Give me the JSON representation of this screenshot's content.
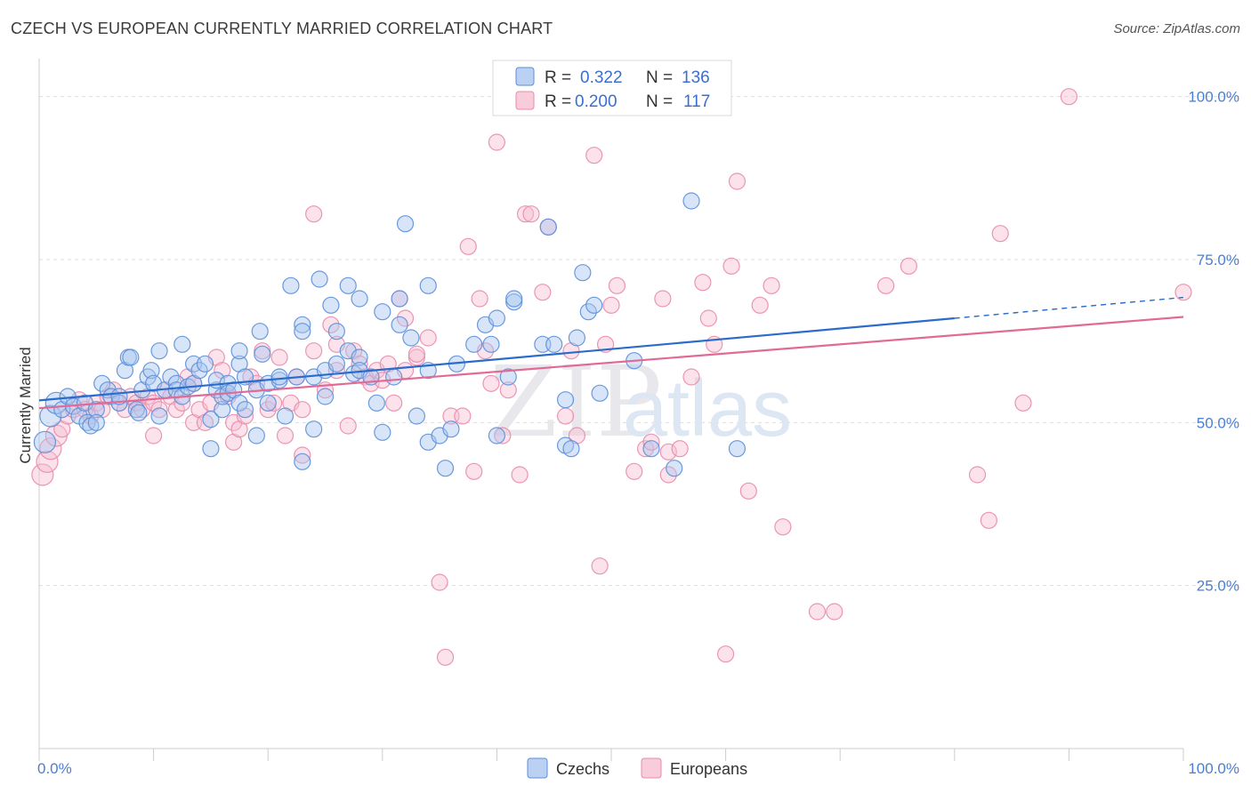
{
  "title": "CZECH VS EUROPEAN CURRENTLY MARRIED CORRELATION CHART",
  "source": "Source: ZipAtlas.com",
  "watermark": {
    "zip": "ZIP",
    "atlas": "atlas"
  },
  "colors": {
    "czechs_fill": "#a9c6f0",
    "czechs_stroke": "#5b8fd9",
    "czechs_line": "#2b6ccb",
    "europeans_fill": "#f6bfd2",
    "europeans_stroke": "#e98bab",
    "europeans_line": "#e06a95",
    "grid": "#dddddd",
    "tick_text": "#4a7ed6"
  },
  "legend": {
    "rows": [
      {
        "r_label": "R =",
        "r_value": "0.322",
        "n_label": "N =",
        "n_value": "136"
      },
      {
        "r_label": "R =",
        "r_value": "0.200",
        "n_label": "N =",
        "n_value": "117"
      }
    ]
  },
  "bottom_legend": [
    "Czechs",
    "Europeans"
  ],
  "chart_data": {
    "type": "scatter",
    "title": "CZECH VS EUROPEAN CURRENTLY MARRIED CORRELATION CHART",
    "xlabel": "",
    "ylabel": "Currently Married",
    "xlim": [
      0,
      100
    ],
    "ylim": [
      0,
      105
    ],
    "x_tick_labels": [
      "0.0%",
      "100.0%"
    ],
    "y_ticks": [
      25,
      50,
      75,
      100
    ],
    "y_tick_labels": [
      "25.0%",
      "50.0%",
      "75.0%",
      "100.0%"
    ],
    "grid": true,
    "legend_placement": "top-center",
    "series": [
      {
        "name": "Czechs",
        "r": 0.322,
        "n": 136,
        "trend": {
          "x0": 0,
          "y0": 53.4,
          "x1": 80,
          "y1": 66.0,
          "dashed_to_x": 100,
          "dashed_to_y": 69.2
        },
        "points": [
          [
            0.5,
            47
          ],
          [
            1,
            51
          ],
          [
            1.5,
            53
          ],
          [
            2,
            52
          ],
          [
            2.5,
            54
          ],
          [
            3,
            52.5
          ],
          [
            3.5,
            51
          ],
          [
            4,
            53
          ],
          [
            4.2,
            50
          ],
          [
            4.5,
            49.5
          ],
          [
            5,
            52
          ],
          [
            5,
            50
          ],
          [
            5.5,
            56
          ],
          [
            6,
            55
          ],
          [
            6.3,
            54
          ],
          [
            7,
            53
          ],
          [
            7,
            54
          ],
          [
            7.5,
            58
          ],
          [
            7.8,
            60
          ],
          [
            8,
            60
          ],
          [
            8.5,
            52
          ],
          [
            8.7,
            51.5
          ],
          [
            9,
            55
          ],
          [
            9.5,
            57
          ],
          [
            9.8,
            58
          ],
          [
            10,
            56
          ],
          [
            10.5,
            61
          ],
          [
            10.5,
            51
          ],
          [
            11,
            55
          ],
          [
            11.5,
            57
          ],
          [
            12,
            56
          ],
          [
            12,
            55
          ],
          [
            12.5,
            62
          ],
          [
            12.5,
            54
          ],
          [
            13,
            55.5
          ],
          [
            13.5,
            56
          ],
          [
            13.5,
            59
          ],
          [
            14,
            58
          ],
          [
            14.5,
            59
          ],
          [
            15,
            46
          ],
          [
            15,
            50.5
          ],
          [
            15.5,
            55
          ],
          [
            15.5,
            56.5
          ],
          [
            16,
            52
          ],
          [
            16,
            54
          ],
          [
            16.5,
            56
          ],
          [
            16.5,
            54.5
          ],
          [
            17,
            55
          ],
          [
            17.5,
            53
          ],
          [
            17.5,
            59
          ],
          [
            17.5,
            61
          ],
          [
            18,
            52
          ],
          [
            18,
            57
          ],
          [
            19,
            48
          ],
          [
            19,
            55
          ],
          [
            19.3,
            64
          ],
          [
            19.5,
            60.5
          ],
          [
            20,
            53
          ],
          [
            20,
            56
          ],
          [
            21,
            56.5
          ],
          [
            21,
            57
          ],
          [
            21.5,
            51
          ],
          [
            22,
            71
          ],
          [
            22.5,
            57
          ],
          [
            23,
            65
          ],
          [
            23,
            64
          ],
          [
            23,
            44
          ],
          [
            24,
            57
          ],
          [
            24,
            49
          ],
          [
            24.5,
            72
          ],
          [
            25,
            58
          ],
          [
            25,
            54
          ],
          [
            25.5,
            68
          ],
          [
            26,
            64
          ],
          [
            26,
            59
          ],
          [
            27,
            61
          ],
          [
            27,
            71
          ],
          [
            27.5,
            57.5
          ],
          [
            28,
            60
          ],
          [
            28,
            69
          ],
          [
            28,
            58
          ],
          [
            29,
            57
          ],
          [
            29.5,
            53
          ],
          [
            30,
            67
          ],
          [
            30,
            48.5
          ],
          [
            31,
            57
          ],
          [
            31.5,
            69
          ],
          [
            31.5,
            65
          ],
          [
            32,
            80.5
          ],
          [
            32.5,
            63
          ],
          [
            33,
            51
          ],
          [
            34,
            58
          ],
          [
            34,
            47
          ],
          [
            34,
            71
          ],
          [
            35,
            48
          ],
          [
            35.5,
            43
          ],
          [
            36,
            49
          ],
          [
            36.5,
            59
          ],
          [
            38,
            62
          ],
          [
            39,
            65
          ],
          [
            39.5,
            62
          ],
          [
            40,
            66
          ],
          [
            40,
            48
          ],
          [
            41,
            57
          ],
          [
            41.5,
            68.5
          ],
          [
            41.5,
            69
          ],
          [
            44,
            62
          ],
          [
            44.5,
            80
          ],
          [
            45,
            62
          ],
          [
            46,
            46.5
          ],
          [
            46.5,
            46
          ],
          [
            46,
            53.5
          ],
          [
            47,
            63
          ],
          [
            47.5,
            73
          ],
          [
            48,
            67
          ],
          [
            48.5,
            68
          ],
          [
            49,
            54.5
          ],
          [
            52,
            59.5
          ],
          [
            53.5,
            46
          ],
          [
            55.5,
            43
          ],
          [
            57,
            84
          ],
          [
            61,
            46
          ]
        ]
      },
      {
        "name": "Europeans",
        "r": 0.2,
        "n": 117,
        "trend": {
          "x0": 0,
          "y0": 52.2,
          "x1": 100,
          "y1": 66.2
        },
        "points": [
          [
            0.3,
            42
          ],
          [
            0.7,
            44
          ],
          [
            1,
            46
          ],
          [
            1.5,
            48
          ],
          [
            2,
            49
          ],
          [
            2.5,
            51
          ],
          [
            3,
            52
          ],
          [
            3.5,
            53.5
          ],
          [
            4,
            52
          ],
          [
            4.5,
            51
          ],
          [
            5,
            53
          ],
          [
            5.5,
            52
          ],
          [
            6,
            54
          ],
          [
            6.5,
            55
          ],
          [
            7,
            53
          ],
          [
            7.5,
            52
          ],
          [
            8,
            54
          ],
          [
            8.5,
            53
          ],
          [
            9,
            52
          ],
          [
            9.5,
            54
          ],
          [
            10,
            53
          ],
          [
            10,
            48
          ],
          [
            10.5,
            52
          ],
          [
            11,
            55
          ],
          [
            11.5,
            54
          ],
          [
            12,
            52
          ],
          [
            12.5,
            53
          ],
          [
            13,
            57
          ],
          [
            13.5,
            56
          ],
          [
            13.5,
            50
          ],
          [
            14,
            52
          ],
          [
            14.5,
            50
          ],
          [
            15,
            53
          ],
          [
            15.5,
            60
          ],
          [
            16,
            58
          ],
          [
            16.5,
            54
          ],
          [
            17,
            47
          ],
          [
            17,
            50
          ],
          [
            17.5,
            49
          ],
          [
            18,
            51
          ],
          [
            18.5,
            57
          ],
          [
            19,
            56
          ],
          [
            19.5,
            61
          ],
          [
            20,
            52
          ],
          [
            20.5,
            53
          ],
          [
            21,
            60
          ],
          [
            21.5,
            48
          ],
          [
            22,
            53
          ],
          [
            22.5,
            57
          ],
          [
            23,
            52
          ],
          [
            23,
            45
          ],
          [
            24,
            61
          ],
          [
            24,
            82
          ],
          [
            25,
            55
          ],
          [
            25.5,
            65
          ],
          [
            26,
            62
          ],
          [
            26,
            58
          ],
          [
            27,
            49.5
          ],
          [
            27.5,
            61
          ],
          [
            28,
            59
          ],
          [
            28.5,
            57
          ],
          [
            29,
            56
          ],
          [
            29.5,
            58
          ],
          [
            30,
            56.5
          ],
          [
            30.5,
            59
          ],
          [
            31,
            53
          ],
          [
            31.5,
            69
          ],
          [
            32,
            66
          ],
          [
            32,
            58
          ],
          [
            33,
            60
          ],
          [
            33,
            60.5
          ],
          [
            34,
            63
          ],
          [
            35,
            25.5
          ],
          [
            35.5,
            14
          ],
          [
            36,
            51
          ],
          [
            37,
            51
          ],
          [
            37.5,
            77
          ],
          [
            38,
            42.5
          ],
          [
            38.5,
            69
          ],
          [
            39,
            61
          ],
          [
            39.5,
            56
          ],
          [
            40,
            93
          ],
          [
            40.5,
            48
          ],
          [
            41,
            55
          ],
          [
            42,
            42
          ],
          [
            42.5,
            82
          ],
          [
            43,
            82
          ],
          [
            44,
            70
          ],
          [
            44.5,
            80
          ],
          [
            46,
            51
          ],
          [
            46.5,
            61
          ],
          [
            47,
            48
          ],
          [
            48.5,
            91
          ],
          [
            49,
            28
          ],
          [
            49.5,
            62
          ],
          [
            50,
            68
          ],
          [
            50.5,
            71
          ],
          [
            52,
            42.5
          ],
          [
            53,
            46
          ],
          [
            53.5,
            47
          ],
          [
            54.5,
            69
          ],
          [
            55,
            42
          ],
          [
            55,
            45.5
          ],
          [
            56,
            46
          ],
          [
            57,
            57
          ],
          [
            58,
            71.5
          ],
          [
            58.5,
            66
          ],
          [
            59,
            62
          ],
          [
            60,
            14.5
          ],
          [
            60.5,
            74
          ],
          [
            61,
            87
          ],
          [
            62,
            39.5
          ],
          [
            63,
            68
          ],
          [
            64,
            71
          ],
          [
            65,
            34
          ],
          [
            68,
            21
          ],
          [
            69.5,
            21
          ],
          [
            74,
            71
          ],
          [
            76,
            74
          ],
          [
            82,
            42
          ],
          [
            83,
            35
          ],
          [
            84,
            79
          ],
          [
            86,
            53
          ],
          [
            90,
            100
          ],
          [
            100,
            70
          ]
        ]
      }
    ]
  }
}
